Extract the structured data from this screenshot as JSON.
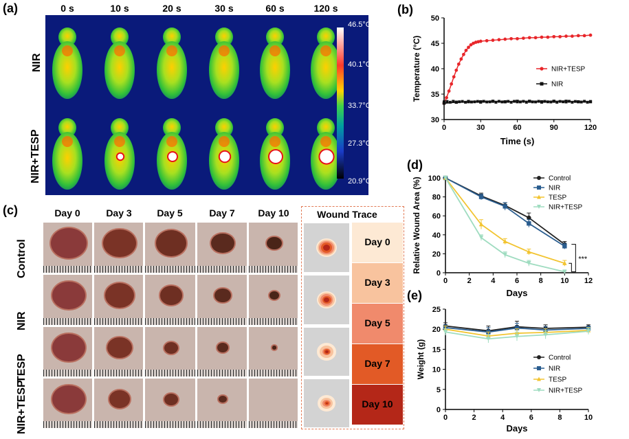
{
  "panel_a": {
    "label": "(a)",
    "times": [
      "0 s",
      "10 s",
      "20 s",
      "30 s",
      "60 s",
      "120 s"
    ],
    "rows": [
      "NIR",
      "NIR+TESP"
    ],
    "colorbar": [
      "46.5°C",
      "40.1°C",
      "33.7°C",
      "27.3°C",
      "20.9°C"
    ]
  },
  "panel_b": {
    "label": "(b)",
    "chart_data": {
      "type": "line",
      "xlabel": "Time (s)",
      "ylabel": "Temperature (°C)",
      "xlim": [
        0,
        120
      ],
      "ylim": [
        30,
        50
      ],
      "xticks": [
        "0",
        "30",
        "60",
        "90",
        "120"
      ],
      "yticks": [
        "30",
        "35",
        "40",
        "45",
        "50"
      ],
      "legend_position": "right",
      "series": [
        {
          "name": "NIR+TESP",
          "color": "#e8262a",
          "x": [
            0,
            2,
            4,
            6,
            8,
            10,
            12,
            14,
            16,
            18,
            20,
            22,
            24,
            26,
            28,
            30,
            35,
            40,
            45,
            50,
            55,
            60,
            65,
            70,
            75,
            80,
            85,
            90,
            95,
            100,
            105,
            110,
            115,
            120
          ],
          "y": [
            33.2,
            34.3,
            35.6,
            37.0,
            38.4,
            39.7,
            40.9,
            41.9,
            42.8,
            43.6,
            44.2,
            44.7,
            45.0,
            45.2,
            45.3,
            45.4,
            45.5,
            45.6,
            45.7,
            45.8,
            45.9,
            45.9,
            46.0,
            46.1,
            46.1,
            46.2,
            46.2,
            46.3,
            46.3,
            46.4,
            46.4,
            46.5,
            46.5,
            46.6
          ]
        },
        {
          "name": "NIR",
          "color": "#111111",
          "x": [
            0,
            10,
            20,
            30,
            40,
            50,
            60,
            70,
            80,
            90,
            100,
            110,
            120
          ],
          "y": [
            33.2,
            33.4,
            33.5,
            33.5,
            33.6,
            33.5,
            33.6,
            33.6,
            33.5,
            33.6,
            33.6,
            33.5,
            33.5
          ]
        }
      ]
    }
  },
  "panel_c": {
    "label": "(c)",
    "days": [
      "Day 0",
      "Day 3",
      "Day 5",
      "Day 7",
      "Day 10"
    ],
    "rows": [
      "Control",
      "NIR",
      "TESP",
      "NIR+TESP"
    ],
    "trace_title": "Wound Trace",
    "trace_legend": [
      "Day 0",
      "Day 3",
      "Day 5",
      "Day 7",
      "Day 10"
    ],
    "trace_colors": [
      "#fde9d4",
      "#f8c39e",
      "#f08a6c",
      "#e25a26",
      "#b42718"
    ]
  },
  "panel_d": {
    "label": "(d)",
    "chart_data": {
      "type": "line",
      "xlabel": "Days",
      "ylabel": "Relative Wound Area (%)",
      "xlim": [
        0,
        12
      ],
      "ylim": [
        0,
        100
      ],
      "xticks": [
        "0",
        "2",
        "4",
        "6",
        "8",
        "10",
        "12"
      ],
      "yticks": [
        "0",
        "20",
        "40",
        "60",
        "80",
        "100"
      ],
      "annotation": "***",
      "legend_position": "top-right",
      "series": [
        {
          "name": "Control",
          "color": "#222222",
          "marker": "circle",
          "x": [
            0,
            3,
            5,
            7,
            10
          ],
          "y": [
            100,
            81,
            71,
            58,
            30
          ],
          "err": [
            0,
            3,
            3,
            5,
            3
          ]
        },
        {
          "name": "NIR",
          "color": "#2a5d8f",
          "marker": "square",
          "x": [
            0,
            3,
            5,
            7,
            10
          ],
          "y": [
            100,
            80,
            70,
            52,
            28
          ],
          "err": [
            0,
            3,
            4,
            4,
            3
          ]
        },
        {
          "name": "TESP",
          "color": "#f2c430",
          "marker": "triangle",
          "x": [
            0,
            3,
            5,
            7,
            10
          ],
          "y": [
            100,
            51,
            33,
            22,
            10
          ],
          "err": [
            0,
            5,
            3,
            3,
            3
          ]
        },
        {
          "name": "NIR+TESP",
          "color": "#9fdcc0",
          "marker": "triangle-down",
          "x": [
            0,
            3,
            5,
            7,
            10
          ],
          "y": [
            100,
            37,
            19,
            10,
            1
          ],
          "err": [
            0,
            3,
            3,
            3,
            1
          ]
        }
      ]
    }
  },
  "panel_e": {
    "label": "(e)",
    "chart_data": {
      "type": "line",
      "xlabel": "Days",
      "ylabel": "Weight (g)",
      "xlim": [
        0,
        10
      ],
      "ylim": [
        0,
        25
      ],
      "xticks": [
        "0",
        "2",
        "4",
        "6",
        "8",
        "10"
      ],
      "yticks": [
        "0",
        "5",
        "10",
        "15",
        "20",
        "25"
      ],
      "legend_position": "right",
      "series": [
        {
          "name": "Control",
          "color": "#222222",
          "marker": "circle",
          "x": [
            0,
            3,
            5,
            7,
            10
          ],
          "y": [
            20.8,
            19.6,
            20.6,
            20.2,
            20.5
          ],
          "err": [
            0.8,
            1.2,
            1.4,
            0.9,
            0.6
          ]
        },
        {
          "name": "NIR",
          "color": "#2a5d8f",
          "marker": "square",
          "x": [
            0,
            3,
            5,
            7,
            10
          ],
          "y": [
            20.4,
            19.3,
            20.3,
            19.8,
            20.2
          ],
          "err": [
            0.7,
            1.1,
            1.2,
            0.9,
            0.6
          ]
        },
        {
          "name": "TESP",
          "color": "#f2c430",
          "marker": "triangle",
          "x": [
            0,
            3,
            5,
            7,
            10
          ],
          "y": [
            20.0,
            18.3,
            19.0,
            19.2,
            19.7
          ],
          "err": [
            0.8,
            1.0,
            1.1,
            0.9,
            0.7
          ]
        },
        {
          "name": "NIR+TESP",
          "color": "#9fdcc0",
          "marker": "triangle-down",
          "x": [
            0,
            3,
            5,
            7,
            10
          ],
          "y": [
            19.3,
            17.6,
            18.2,
            18.6,
            19.5
          ],
          "err": [
            0.8,
            1.0,
            1.1,
            1.0,
            0.8
          ]
        }
      ]
    }
  }
}
